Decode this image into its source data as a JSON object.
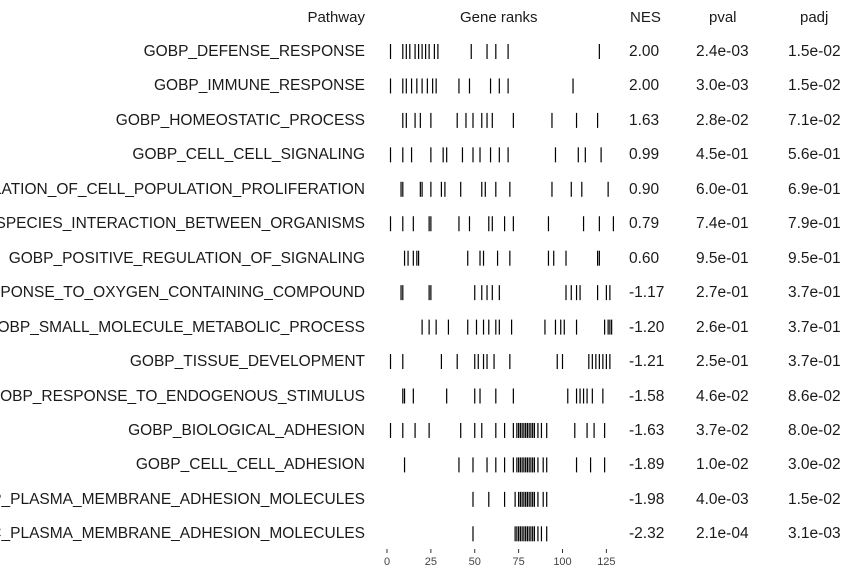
{
  "chart_data": {
    "type": "table",
    "columns": [
      "Pathway",
      "Gene ranks",
      "NES",
      "pval",
      "padj"
    ],
    "x_ticks": [
      0,
      25,
      50,
      75,
      100,
      125
    ],
    "xlim": [
      0,
      130
    ],
    "rows": [
      {
        "pathway": "GOBP_DEFENSE_RESPONSE",
        "nes": "2.00",
        "pval": "2.4e-03",
        "padj": "1.5e-02",
        "ranks": [
          2,
          9,
          11,
          13,
          16,
          18,
          20,
          22,
          24,
          27,
          29,
          48,
          57,
          62,
          69,
          121
        ]
      },
      {
        "pathway": "GOBP_IMMUNE_RESPONSE",
        "nes": "2.00",
        "pval": "3.0e-03",
        "padj": "1.5e-02",
        "ranks": [
          2,
          9,
          11,
          14,
          17,
          20,
          23,
          26,
          28,
          41,
          47,
          59,
          64,
          69,
          106
        ]
      },
      {
        "pathway": "GOBP_HOMEOSTATIC_PROCESS",
        "nes": "1.63",
        "pval": "2.8e-02",
        "padj": "7.1e-02",
        "ranks": [
          9,
          11,
          16,
          19,
          25,
          40,
          45,
          49,
          54,
          57,
          60,
          72,
          94,
          108,
          120
        ]
      },
      {
        "pathway": "GOBP_CELL_CELL_SIGNALING",
        "nes": "0.99",
        "pval": "4.5e-01",
        "padj": "5.6e-01",
        "ranks": [
          2,
          9,
          14,
          25,
          32,
          34,
          43,
          49,
          53,
          59,
          64,
          69,
          96,
          109,
          113,
          122
        ]
      },
      {
        "pathway": "REGULATION_OF_CELL_POPULATION_PROLIFERATION",
        "nes": "0.90",
        "pval": "6.0e-01",
        "padj": "6.9e-01",
        "ranks": [
          8,
          9,
          19,
          20,
          25,
          31,
          33,
          42,
          54,
          56,
          62,
          70,
          94,
          105,
          111,
          126
        ]
      },
      {
        "pathway": "INTERSPECIES_INTERACTION_BETWEEN_ORGANISMS",
        "nes": "0.79",
        "pval": "7.4e-01",
        "padj": "7.9e-01",
        "ranks": [
          2,
          9,
          15,
          24,
          25,
          41,
          47,
          58,
          60,
          67,
          72,
          92,
          112,
          121,
          129
        ]
      },
      {
        "pathway": "GOBP_POSITIVE_REGULATION_OF_SIGNALING",
        "nes": "0.60",
        "pval": "9.5e-01",
        "padj": "9.5e-01",
        "ranks": [
          10,
          12,
          15,
          17,
          18,
          46,
          53,
          55,
          63,
          70,
          92,
          95,
          102,
          120,
          121
        ]
      },
      {
        "pathway": "REGULATION_OF_RESPONSE_TO_OXYGEN_CONTAINING_COMPOUND",
        "nes": "-1.17",
        "pval": "2.7e-01",
        "padj": "3.7e-01",
        "ranks": [
          8,
          9,
          24,
          25,
          50,
          54,
          57,
          60,
          64,
          102,
          105,
          108,
          110,
          120,
          125,
          127
        ]
      },
      {
        "pathway": "GOBP_SMALL_MOLECULE_METABOLIC_PROCESS",
        "nes": "-1.20",
        "pval": "2.6e-01",
        "padj": "3.7e-01",
        "ranks": [
          20,
          24,
          28,
          35,
          46,
          51,
          55,
          58,
          62,
          64,
          71,
          90,
          96,
          99,
          101,
          108,
          124,
          126,
          127,
          128
        ]
      },
      {
        "pathway": "GOBP_TISSUE_DEVELOPMENT",
        "nes": "-1.21",
        "pval": "2.5e-01",
        "padj": "3.7e-01",
        "ranks": [
          2,
          9,
          31,
          40,
          50,
          52,
          55,
          57,
          61,
          70,
          97,
          100,
          115,
          117,
          119,
          121,
          123,
          125,
          127
        ]
      },
      {
        "pathway": "GOBP_RESPONSE_TO_ENDOGENOUS_STIMULUS",
        "nes": "-1.58",
        "pval": "4.6e-02",
        "padj": "8.6e-02",
        "ranks": [
          9,
          10,
          15,
          34,
          50,
          53,
          62,
          72,
          103,
          108,
          110,
          112,
          114,
          117,
          123
        ]
      },
      {
        "pathway": "GOBP_BIOLOGICAL_ADHESION",
        "nes": "-1.63",
        "pval": "3.7e-02",
        "padj": "8.0e-02",
        "ranks": [
          2,
          9,
          16,
          24,
          42,
          50,
          54,
          62,
          67,
          72,
          74,
          75,
          76,
          77,
          78,
          79,
          80,
          81,
          82,
          83,
          84,
          86,
          88,
          91,
          107,
          114,
          118,
          124
        ]
      },
      {
        "pathway": "GOBP_CELL_CELL_ADHESION",
        "nes": "-1.89",
        "pval": "1.0e-02",
        "padj": "3.0e-02",
        "ranks": [
          10,
          41,
          49,
          57,
          62,
          67,
          72,
          74,
          75,
          76,
          77,
          78,
          79,
          80,
          81,
          82,
          83,
          84,
          86,
          89,
          91,
          108,
          116,
          124
        ]
      },
      {
        "pathway": "GOBP_PLASMA_MEMBRANE_ADHESION_MOLECULES",
        "nes": "-1.98",
        "pval": "4.0e-03",
        "padj": "1.5e-02",
        "ranks": [
          49,
          58,
          67,
          73,
          75,
          76,
          77,
          78,
          79,
          80,
          81,
          82,
          83,
          84,
          86,
          89,
          91
        ]
      },
      {
        "pathway": "GOCC_PLASMA_MEMBRANE_ADHESION_MOLECULES",
        "nes": "-2.32",
        "pval": "2.1e-04",
        "padj": "3.1e-03",
        "ranks": [
          49,
          73,
          74,
          75,
          76,
          77,
          78,
          79,
          80,
          81,
          82,
          83,
          84,
          86,
          88,
          91
        ]
      }
    ]
  }
}
